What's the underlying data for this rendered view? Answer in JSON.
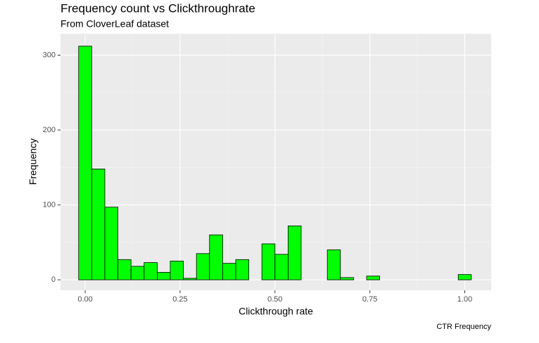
{
  "chart_data": {
    "type": "histogram",
    "title": "Frequency count vs Clickthroughrate",
    "subtitle": "From CloverLeaf dataset",
    "x_label": "Clickthrough rate",
    "y_label": "Frequency",
    "caption": "CTR Frequency",
    "bins": [
      -0.0172,
      0.0172,
      0.0517,
      0.0862,
      0.1207,
      0.1552,
      0.1897,
      0.2241,
      0.2586,
      0.2931,
      0.3276,
      0.3621,
      0.3966,
      0.431,
      0.4655,
      0.5,
      0.5345,
      0.569,
      0.6034,
      0.6379,
      0.6724,
      0.7069,
      0.7414,
      0.7759,
      0.8103,
      0.8448,
      0.8793,
      0.9138,
      0.9483,
      0.9828,
      1.0172
    ],
    "values": [
      312,
      148,
      97,
      27,
      18,
      23,
      10,
      25,
      2,
      35,
      60,
      22,
      27,
      0,
      48,
      34,
      72,
      0,
      0,
      40,
      3,
      0,
      5,
      0,
      0,
      0,
      0,
      0,
      0,
      7
    ],
    "color": "#00ff00",
    "edge_color": "#000000",
    "xlim": [
      -0.065,
      1.0695
    ],
    "ylim": [
      -14,
      328.6
    ],
    "xticks": [
      {
        "value": 0,
        "label": "0.00"
      },
      {
        "value": 0.25,
        "label": "0.25"
      },
      {
        "value": 0.5,
        "label": "0.50"
      },
      {
        "value": 0.75,
        "label": "0.75"
      },
      {
        "value": 1,
        "label": "1.00"
      }
    ],
    "yticks": [
      0,
      100,
      200,
      300
    ],
    "minor_xticks": [
      0.125,
      0.375,
      0.625,
      0.875
    ],
    "minor_yticks": [
      50,
      150,
      250
    ],
    "grid": true
  }
}
